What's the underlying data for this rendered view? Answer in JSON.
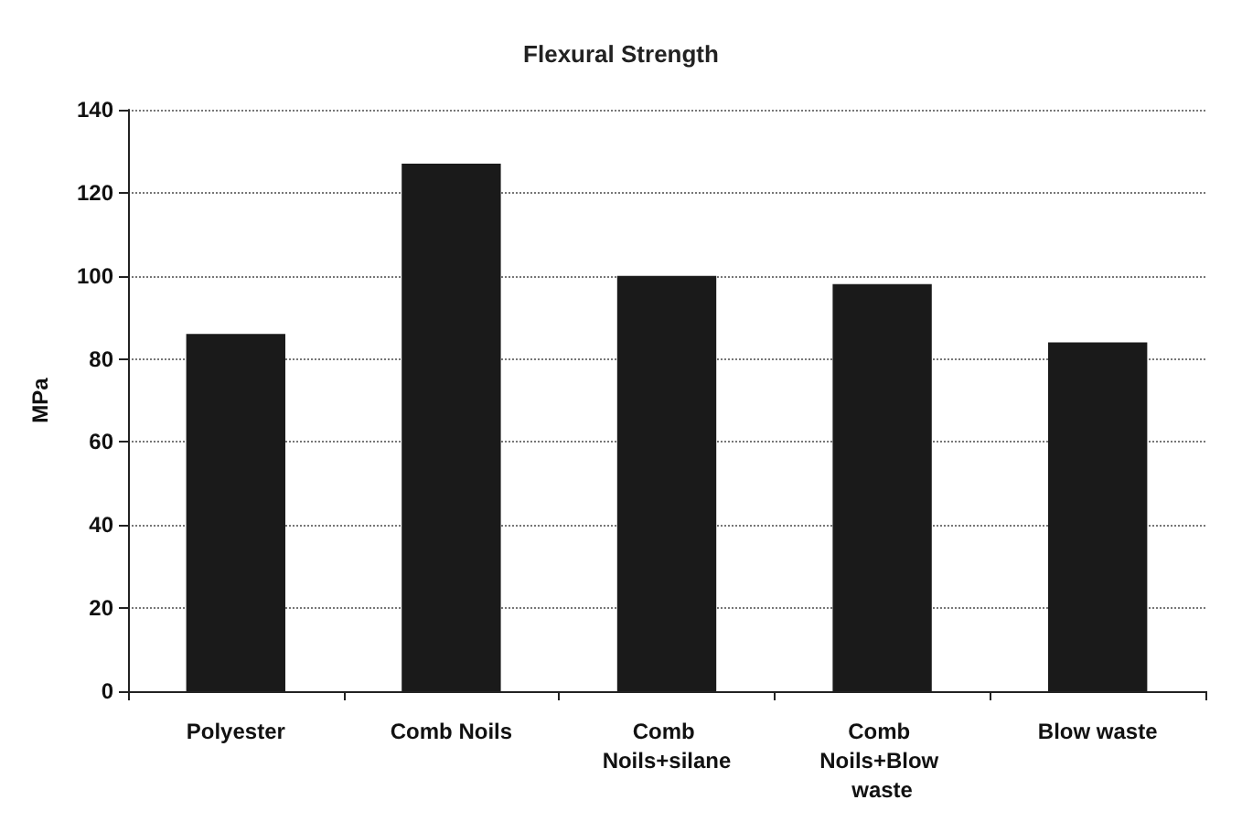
{
  "chart_data": {
    "type": "bar",
    "title": "Flexural Strength",
    "ylabel": "MPa",
    "categories": [
      "Polyester",
      "Comb Noils",
      "Comb Noils+silane",
      "Comb Noils+Blow waste",
      "Blow waste"
    ],
    "values": [
      86,
      127,
      100,
      98,
      84
    ],
    "color": "#1a1a1a",
    "ylim": [
      0,
      140
    ],
    "yticks": [
      0,
      20,
      40,
      60,
      80,
      100,
      120,
      140
    ],
    "grid": "y"
  }
}
